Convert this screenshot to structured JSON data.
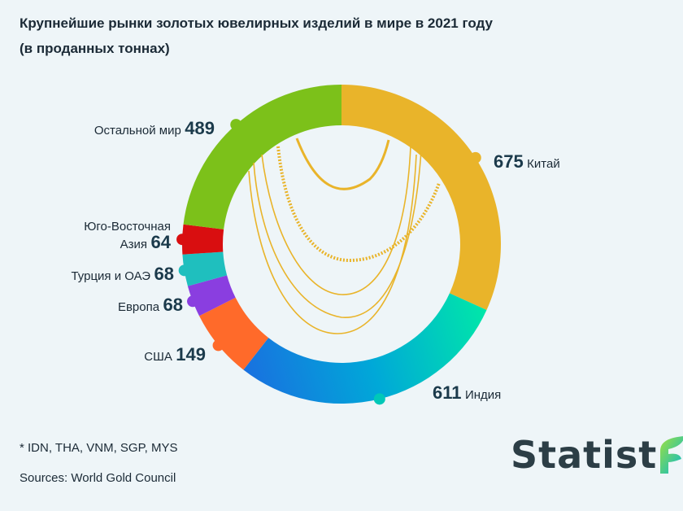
{
  "title_line1": "Крупнейшие рынки золотых ювелирных изделий в мире в 2021 году",
  "title_line2": "(в проданных тоннах)",
  "chart_data": {
    "type": "pie",
    "title": "Крупнейшие рынки золотых ювелирных изделий в мире в 2021 году (в проданных тоннах)",
    "slices": [
      {
        "label": "Китай",
        "value": 675
      },
      {
        "label": "Индия",
        "value": 611
      },
      {
        "label": "США",
        "value": 149
      },
      {
        "label": "Европа",
        "value": 68
      },
      {
        "label": "Турция и ОАЭ",
        "value": 68
      },
      {
        "label": "Юго-Восточная Азия",
        "value": 64
      },
      {
        "label": "Остальной мир",
        "value": 489
      }
    ],
    "colors": [
      "#e9b42a",
      "#00c8c0",
      "#ff6a2a",
      "#8a3ee0",
      "#1fbfbe",
      "#d90e10",
      "#7cc11a"
    ],
    "legend": "none"
  },
  "labels": {
    "china": {
      "name": "Китай",
      "value": "675"
    },
    "india": {
      "name": "Индия",
      "value": "611"
    },
    "usa": {
      "name": "США",
      "value": "149"
    },
    "europe": {
      "name": "Европа",
      "value": "68"
    },
    "turkey": {
      "name": "Турция и ОАЭ",
      "value": "68"
    },
    "sea_line1": "Юго-Восточная",
    "sea_line2": "Азия",
    "sea_value": "64",
    "rest": {
      "name": "Остальной мир",
      "value": "489"
    }
  },
  "footnote": "* IDN, THA, VNM, SGP, MYS",
  "source": "Sources: World Gold Council",
  "logo_text": "Statist"
}
